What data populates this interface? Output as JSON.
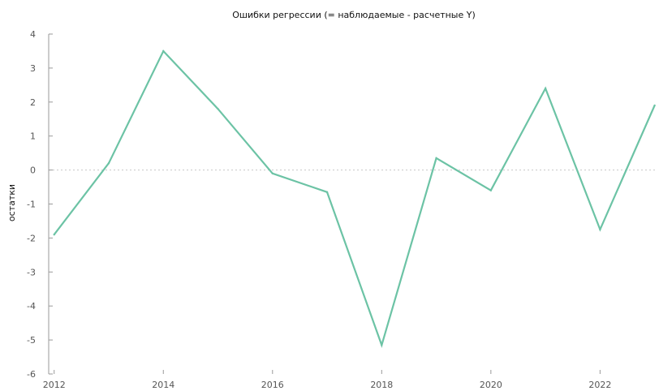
{
  "chart_data": {
    "type": "line",
    "title": "Ошибки регрессии (= наблюдаемые - расчетные Y)",
    "xlabel": "",
    "ylabel": "остатки",
    "xlim": [
      2011.9,
      2023.05
    ],
    "ylim": [
      -6,
      4
    ],
    "x_ticks": [
      2012,
      2014,
      2016,
      2018,
      2020,
      2022
    ],
    "y_ticks": [
      4,
      3,
      2,
      1,
      0,
      -1,
      -2,
      -3,
      -4,
      -5,
      -6
    ],
    "zero_line": true,
    "grid": false,
    "legend": "none",
    "line_color": "#6cc3a5",
    "series": [
      {
        "x": [
          2012,
          2013,
          2014,
          2015,
          2016,
          2017,
          2018,
          2019,
          2020,
          2021,
          2022,
          2023
        ],
        "values": [
          -1.9,
          0.2,
          3.5,
          1.8,
          -0.1,
          -0.65,
          -5.15,
          0.35,
          -0.6,
          2.4,
          -1.75,
          1.9
        ]
      }
    ]
  }
}
